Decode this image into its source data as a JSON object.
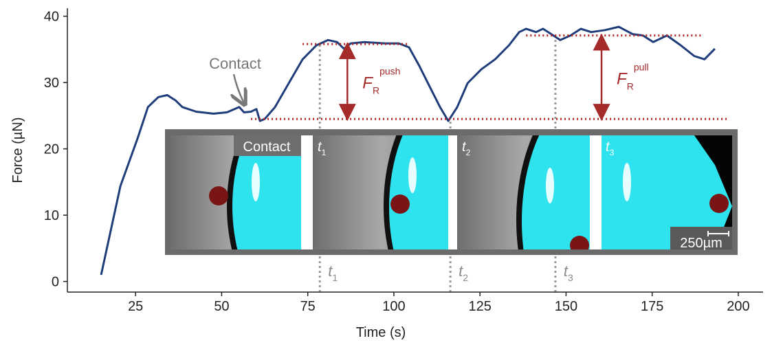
{
  "chart_data": {
    "type": "line",
    "x_label": "Time (s)",
    "y_label": "Force (µN)",
    "xlim": [
      5.2,
      207.2
    ],
    "ylim": [
      -1.6,
      41.2
    ],
    "xticks": [
      25,
      50,
      75,
      100,
      125,
      150,
      175,
      200
    ],
    "yticks": [
      0,
      10,
      20,
      30,
      40
    ],
    "series": [
      {
        "color": "#1f3d7a",
        "x": [
          15.0,
          20.6,
          25.6,
          28.6,
          31.6,
          34.2,
          36.6,
          38.6,
          42.6,
          47.6,
          51.5,
          55.1,
          56.5,
          58.5,
          60.1,
          61.1,
          62.5,
          65.5,
          69.5,
          73.5,
          77.5,
          80.9,
          83.5,
          85.5,
          87.5,
          91.5,
          97.4,
          101.4,
          104.4,
          107.4,
          110.4,
          113.4,
          115.8,
          118.4,
          121.4,
          125.4,
          129.4,
          133.4,
          136.4,
          138.4,
          141.3,
          143.3,
          146.3,
          148.3,
          151.3,
          154.3,
          157.3,
          161.3,
          165.3,
          169.3,
          172.3,
          175.3,
          179.3,
          183.3,
          187.2,
          190.2,
          193.2
        ],
        "values": [
          1.0,
          14.4,
          21.6,
          26.3,
          27.8,
          28.1,
          27.3,
          26.3,
          25.6,
          25.3,
          25.5,
          26.3,
          25.5,
          25.6,
          26.0,
          24.2,
          24.5,
          26.3,
          29.9,
          33.5,
          35.6,
          36.4,
          36.1,
          35.1,
          35.9,
          36.1,
          35.9,
          35.9,
          35.3,
          32.5,
          29.4,
          26.3,
          24.2,
          26.3,
          29.9,
          32.0,
          33.5,
          35.6,
          37.6,
          38.1,
          37.6,
          38.1,
          37.1,
          36.4,
          37.1,
          38.1,
          37.6,
          37.9,
          38.4,
          37.3,
          37.1,
          36.1,
          37.1,
          35.6,
          34.0,
          33.5,
          35.1
        ]
      }
    ],
    "hlines": [
      {
        "y": 24.5,
        "xmin": 58.5,
        "xmax": 197,
        "color": "#b22222"
      },
      {
        "y": 35.8,
        "xmin": 73.5,
        "xmax": 104.4,
        "color": "#b22222"
      },
      {
        "y": 37.1,
        "xmin": 138.4,
        "xmax": 189.2,
        "color": "#b22222"
      }
    ],
    "vlines": [
      {
        "x": 78.5,
        "ymax": 35.8,
        "label": {
          "text": "t",
          "sub": "1"
        }
      },
      {
        "x": 116.4,
        "ymax": 24.5,
        "label": {
          "text": "t",
          "sub": "2"
        }
      },
      {
        "x": 146.9,
        "ymax": 37.1,
        "label": {
          "text": "t",
          "sub": "3"
        }
      }
    ],
    "arrows": [
      {
        "x": 86.5,
        "y0": 24.5,
        "y1": 35.8,
        "label": {
          "symbol": "F",
          "sub": "R",
          "sup": "push"
        }
      },
      {
        "x": 160.3,
        "y0": 24.5,
        "y1": 37.1,
        "label": {
          "symbol": "F",
          "sub": "R",
          "sup": "pull"
        }
      }
    ],
    "contact": "Contact",
    "inset": {
      "panels": [
        {
          "text": "Contact"
        },
        {
          "text": "t",
          "sub": "1"
        },
        {
          "text": "t",
          "sub": "2"
        },
        {
          "text": "t",
          "sub": "3"
        }
      ],
      "scale_bar": "250µm"
    }
  }
}
